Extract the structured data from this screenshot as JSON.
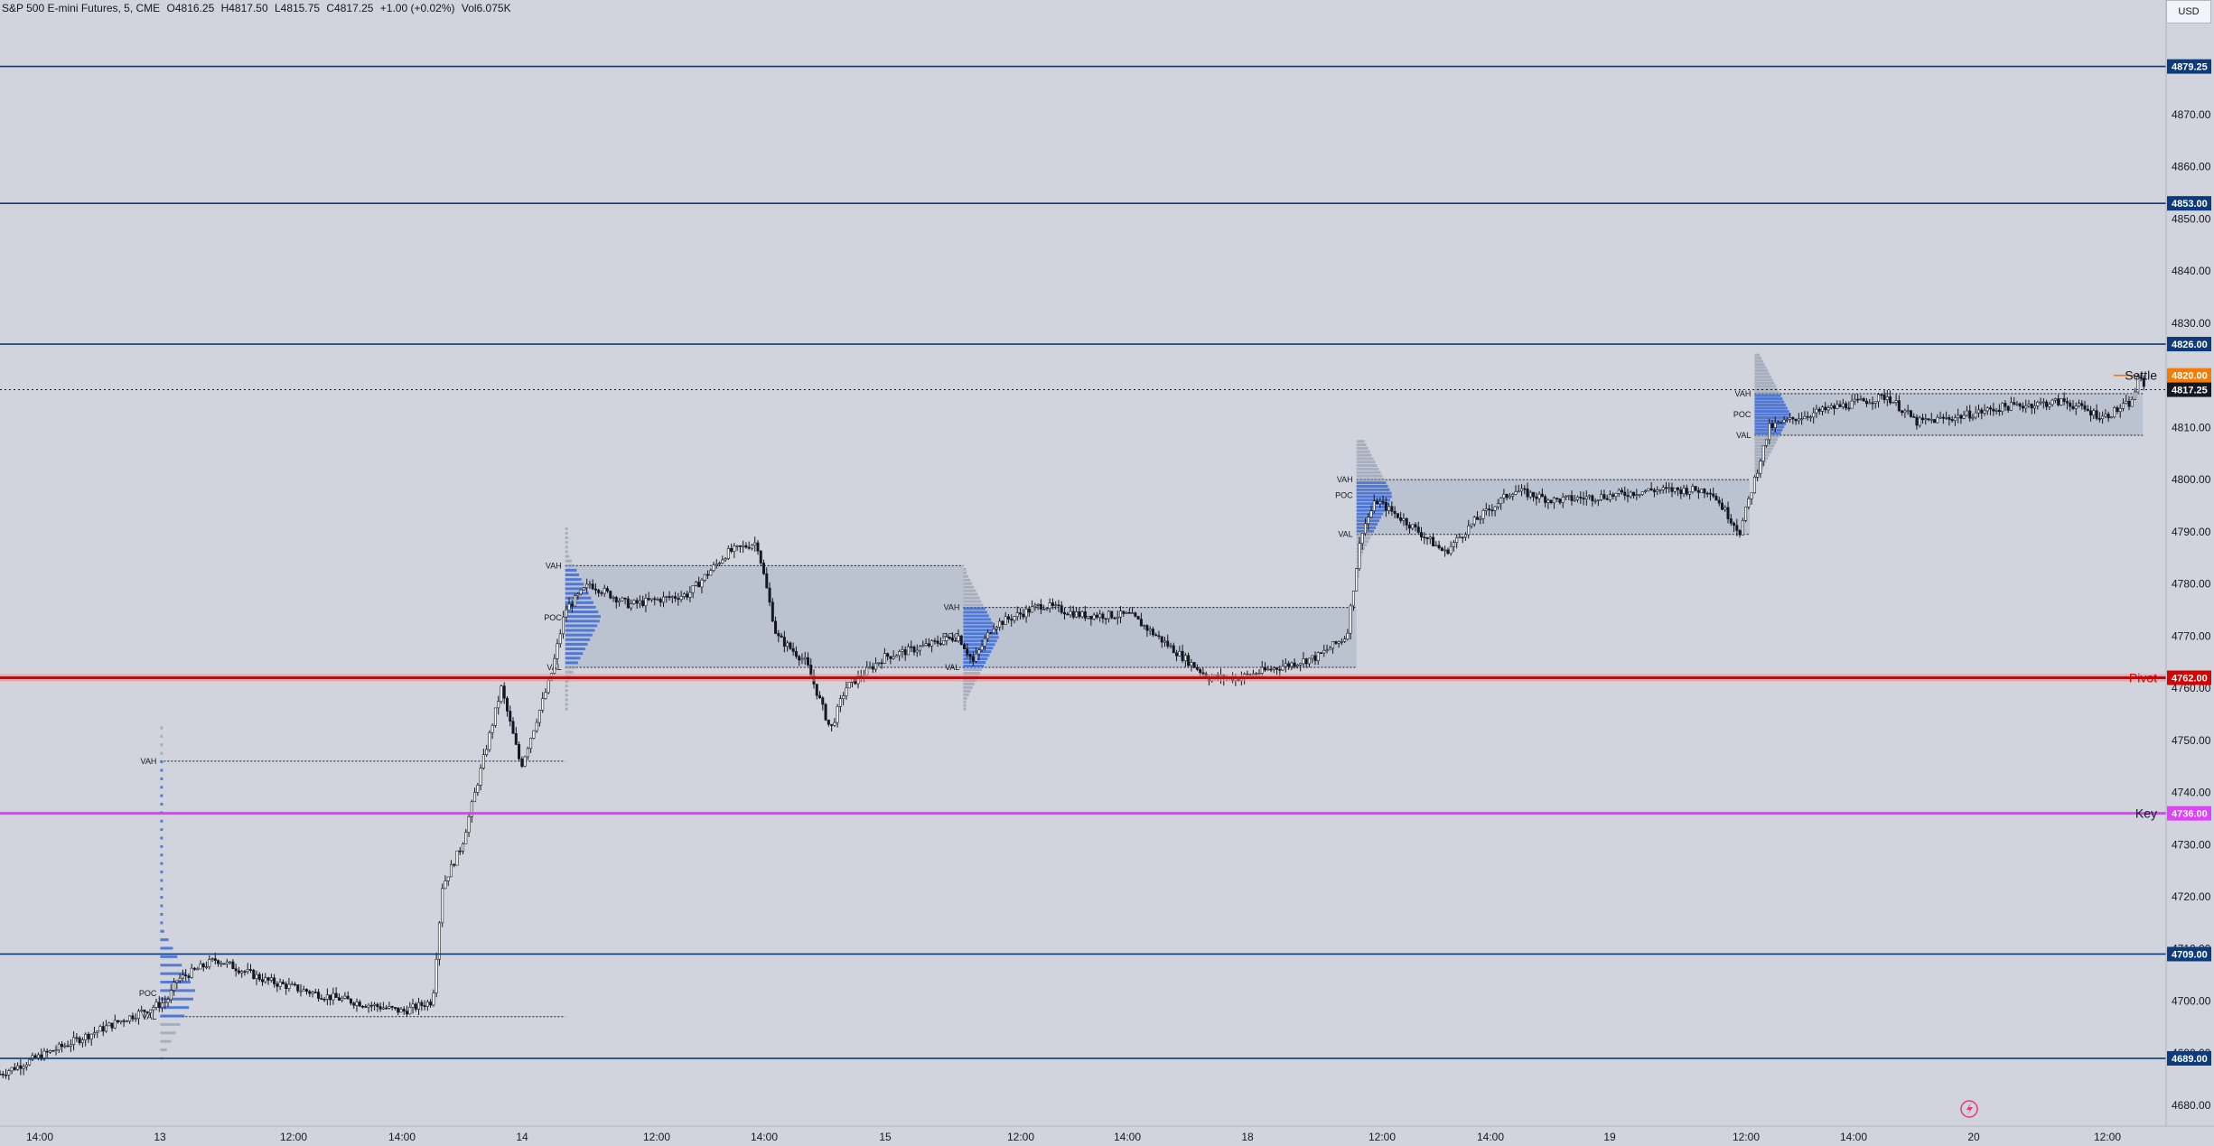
{
  "header": {
    "symbol": "S&P 500 E-mini Futures, 5, CME",
    "open": "O4816.25",
    "high": "H4817.50",
    "low": "L4815.75",
    "close": "C4817.25",
    "change": "+1.00 (+0.02%)",
    "volume": "Vol6.075K",
    "currency": "USD"
  },
  "chart_data": {
    "type": "candlestick",
    "ylim": [
      4676,
      4892
    ],
    "y_ticks": [
      "4870.00",
      "4860.00",
      "4850.00",
      "4840.00",
      "4830.00",
      "4820.00",
      "4810.00",
      "4800.00",
      "4790.00",
      "4780.00",
      "4770.00",
      "4760.00",
      "4750.00",
      "4740.00",
      "4730.00",
      "4720.00",
      "4710.00",
      "4700.00",
      "4690.00",
      "4680.00"
    ],
    "x_ticks": [
      "14:00",
      "13",
      "12:00",
      "14:00",
      "14",
      "12:00",
      "14:00",
      "15",
      "12:00",
      "14:00",
      "18",
      "12:00",
      "14:00",
      "19",
      "12:00",
      "14:00",
      "20",
      "12:00"
    ],
    "levels": [
      {
        "price": 4879.25,
        "tag": "4879.25",
        "label": "",
        "color": "#0c3a7a"
      },
      {
        "price": 4853.0,
        "tag": "4853.00",
        "label": "",
        "color": "#0c3a7a"
      },
      {
        "price": 4826.0,
        "tag": "4826.00",
        "label": "",
        "color": "#0c3a7a"
      },
      {
        "price": 4820.0,
        "tag": "4820.00",
        "label": "Settle",
        "color": "#f57c00"
      },
      {
        "price": 4762.0,
        "tag": "4762.00",
        "label": "Pivot",
        "color": "#d50000"
      },
      {
        "price": 4736.0,
        "tag": "4736.00",
        "label": "Key",
        "color": "#e040fb"
      },
      {
        "price": 4709.0,
        "tag": "4709.00",
        "label": "",
        "color": "#0c3a7a"
      },
      {
        "price": 4689.0,
        "tag": "4689.00",
        "label": "",
        "color": "#0c3a7a"
      }
    ],
    "current_price": {
      "price": 4817.25,
      "tag": "4817.25"
    },
    "value_areas": [
      {
        "vah": 4746.0,
        "poc": 4701.5,
        "val": 4697.0
      },
      {
        "vah": 4783.5,
        "poc": 4773.5,
        "val": 4764.0
      },
      {
        "vah": 4775.5,
        "poc": 4770.0,
        "val": 4764.0
      },
      {
        "vah": 4800.0,
        "poc": 4797.0,
        "val": 4789.5
      },
      {
        "vah": 4816.5,
        "poc": 4812.5,
        "val": 4808.5
      }
    ],
    "profile_labels": {
      "vah": "VAH",
      "poc": "POC",
      "val": "VAL"
    },
    "path": [
      [
        0,
        4686
      ],
      [
        120,
        4696
      ],
      [
        170,
        4700
      ],
      [
        180,
        4704
      ],
      [
        220,
        4708
      ],
      [
        270,
        4704
      ],
      [
        330,
        4701
      ],
      [
        410,
        4698
      ],
      [
        440,
        4700
      ],
      [
        450,
        4722
      ],
      [
        470,
        4730
      ],
      [
        490,
        4745
      ],
      [
        510,
        4760
      ],
      [
        530,
        4745
      ],
      [
        560,
        4762
      ],
      [
        575,
        4775
      ],
      [
        600,
        4780
      ],
      [
        640,
        4776
      ],
      [
        700,
        4778
      ],
      [
        740,
        4786
      ],
      [
        770,
        4788
      ],
      [
        790,
        4770
      ],
      [
        820,
        4765
      ],
      [
        845,
        4752
      ],
      [
        860,
        4760
      ],
      [
        900,
        4766
      ],
      [
        940,
        4768
      ],
      [
        975,
        4770
      ],
      [
        990,
        4765
      ],
      [
        1010,
        4772
      ],
      [
        1060,
        4776
      ],
      [
        1100,
        4774
      ],
      [
        1150,
        4774
      ],
      [
        1190,
        4768
      ],
      [
        1230,
        4762
      ],
      [
        1260,
        4762
      ],
      [
        1300,
        4764
      ],
      [
        1340,
        4766
      ],
      [
        1370,
        4770
      ],
      [
        1385,
        4790
      ],
      [
        1400,
        4796
      ],
      [
        1430,
        4792
      ],
      [
        1470,
        4786
      ],
      [
        1500,
        4792
      ],
      [
        1540,
        4798
      ],
      [
        1580,
        4796
      ],
      [
        1640,
        4797
      ],
      [
        1680,
        4798
      ],
      [
        1740,
        4798
      ],
      [
        1770,
        4790
      ],
      [
        1785,
        4800
      ],
      [
        1800,
        4810
      ],
      [
        1830,
        4812
      ],
      [
        1870,
        4814
      ],
      [
        1920,
        4816
      ],
      [
        1950,
        4811
      ],
      [
        1990,
        4812
      ],
      [
        2040,
        4814
      ],
      [
        2100,
        4815
      ],
      [
        2140,
        4812
      ],
      [
        2170,
        4815
      ],
      [
        2175,
        4820
      ],
      [
        2182,
        4817
      ]
    ]
  }
}
